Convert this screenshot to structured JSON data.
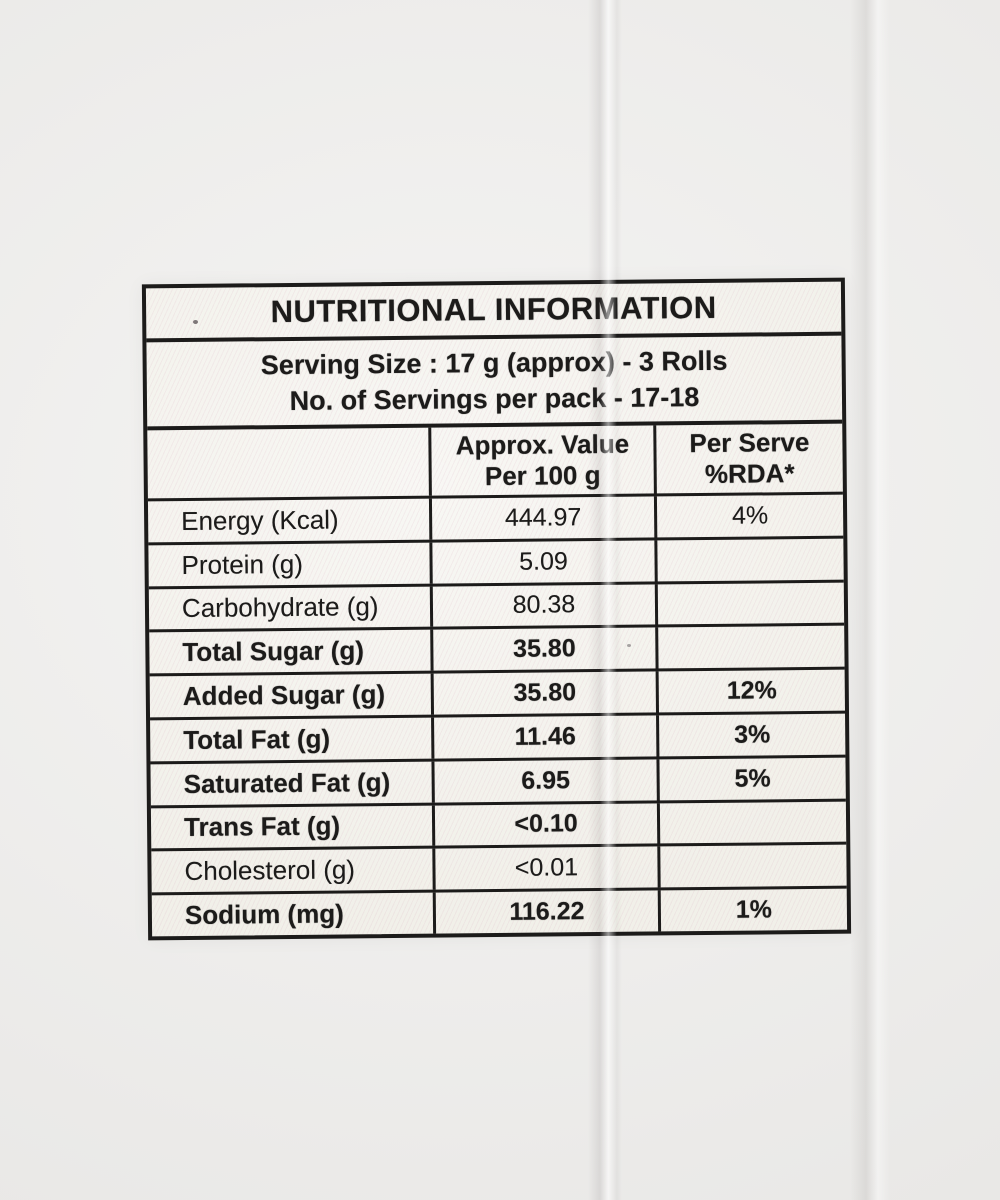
{
  "colors": {
    "background": "#efeeec",
    "paper": "#f1f0e9",
    "ink": "#1c1b1a",
    "halftone_pink": "#cd87a5"
  },
  "table": {
    "title": "NUTRITIONAL INFORMATION",
    "serving_line1": "Serving Size : 17 g (approx) - 3 Rolls",
    "serving_line2": "No. of Servings per pack - 17-18",
    "col_value_line1": "Approx. Value",
    "col_value_line2": "Per 100 g",
    "col_rda_line1": "Per Serve",
    "col_rda_line2": "%RDA*",
    "rows": [
      {
        "label": "Energy (Kcal)",
        "value": "444.97",
        "rda": "4%"
      },
      {
        "label": "Protein (g)",
        "value": "5.09",
        "rda": ""
      },
      {
        "label": "Carbohydrate (g)",
        "value": "80.38",
        "rda": ""
      },
      {
        "label": "Total Sugar (g)",
        "value": "35.80",
        "rda": ""
      },
      {
        "label": "Added Sugar (g)",
        "value": "35.80",
        "rda": "12%"
      },
      {
        "label": "Total Fat (g)",
        "value": "11.46",
        "rda": "3%"
      },
      {
        "label": "Saturated Fat (g)",
        "value": "6.95",
        "rda": "5%"
      },
      {
        "label": "Trans Fat (g)",
        "value": "<0.10",
        "rda": ""
      },
      {
        "label": "Cholesterol (g)",
        "value": "<0.01",
        "rda": ""
      },
      {
        "label": "Sodium (mg)",
        "value": "116.22",
        "rda": "1%"
      }
    ]
  }
}
